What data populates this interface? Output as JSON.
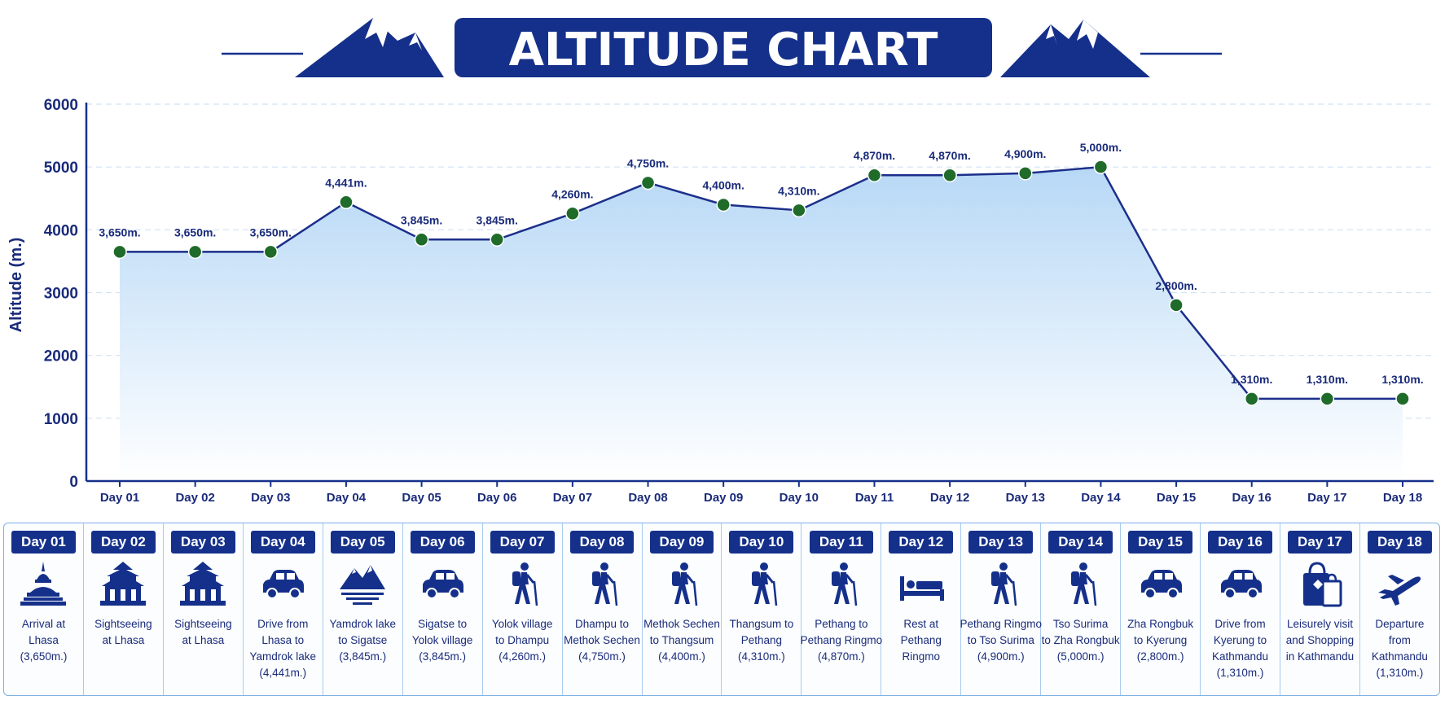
{
  "header": {
    "title": "ALTITUDE CHART"
  },
  "colors": {
    "navy": "#15308a",
    "line": "#1c2f8a",
    "point": "#1f6b2a",
    "fill_top": "#bcdcf7",
    "grid": "#cfe3f5"
  },
  "chart_data": {
    "type": "area",
    "title": "ALTITUDE CHART",
    "xlabel": "",
    "ylabel": "Altitude (m.)",
    "ylim": [
      0,
      6000
    ],
    "yticks": [
      "0",
      "1000",
      "2000",
      "3000",
      "4000",
      "5000",
      "6000"
    ],
    "ytick_values": [
      0,
      1000,
      2000,
      3000,
      4000,
      5000,
      6000
    ],
    "grid": true,
    "legend": "none",
    "categories": [
      "Day 01",
      "Day 02",
      "Day 03",
      "Day 04",
      "Day 05",
      "Day 06",
      "Day 07",
      "Day 08",
      "Day 09",
      "Day 10",
      "Day 11",
      "Day 12",
      "Day 13",
      "Day 14",
      "Day 15",
      "Day 16",
      "Day 17",
      "Day 18"
    ],
    "values": [
      3650,
      3650,
      3650,
      4441,
      3845,
      3845,
      4260,
      4750,
      4400,
      4310,
      4870,
      4870,
      4900,
      5000,
      2800,
      1310,
      1310,
      1310
    ],
    "data_labels": [
      "3,650m.",
      "3,650m.",
      "3,650m.",
      "4,441m.",
      "3,845m.",
      "3,845m.",
      "4,260m.",
      "4,750m.",
      "4,400m.",
      "4,310m.",
      "4,870m.",
      "4,870m.",
      "4,900m.",
      "5,000m.",
      "2,800m.",
      "1,310m.",
      "1,310m.",
      "1,310m."
    ]
  },
  "itinerary": [
    {
      "day": "Day 01",
      "icon": "stupa-icon",
      "lines": [
        "Arrival at",
        "Lhasa",
        "(3,650m.)"
      ]
    },
    {
      "day": "Day 02",
      "icon": "temple-icon",
      "lines": [
        "Sightseeing",
        "at Lhasa"
      ]
    },
    {
      "day": "Day 03",
      "icon": "temple-icon",
      "lines": [
        "Sightseeing",
        "at Lhasa"
      ]
    },
    {
      "day": "Day 04",
      "icon": "car-icon",
      "lines": [
        "Drive from",
        "Lhasa to",
        "Yamdrok lake",
        "(4,441m.)"
      ]
    },
    {
      "day": "Day 05",
      "icon": "mountain-lake-icon",
      "lines": [
        "Yamdrok lake",
        "to Sigatse",
        "(3,845m.)"
      ]
    },
    {
      "day": "Day 06",
      "icon": "car-icon",
      "lines": [
        "Sigatse to",
        "Yolok village",
        "(3,845m.)"
      ]
    },
    {
      "day": "Day 07",
      "icon": "hiker-icon",
      "lines": [
        "Yolok village",
        "to Dhampu",
        "(4,260m.)"
      ]
    },
    {
      "day": "Day 08",
      "icon": "hiker-icon",
      "lines": [
        "Dhampu to",
        "Methok Sechen",
        "(4,750m.)"
      ]
    },
    {
      "day": "Day 09",
      "icon": "hiker-icon",
      "lines": [
        "Methok Sechen",
        "to Thangsum",
        "(4,400m.)"
      ]
    },
    {
      "day": "Day 10",
      "icon": "hiker-icon",
      "lines": [
        "Thangsum to",
        "Pethang",
        "(4,310m.)"
      ]
    },
    {
      "day": "Day 11",
      "icon": "hiker-icon",
      "lines": [
        "Pethang to",
        "Pethang Ringmo",
        "(4,870m.)"
      ]
    },
    {
      "day": "Day 12",
      "icon": "bed-icon",
      "lines": [
        "Rest at",
        "Pethang",
        "Ringmo"
      ]
    },
    {
      "day": "Day 13",
      "icon": "hiker-icon",
      "lines": [
        "Pethang Ringmo",
        "to Tso Surima",
        "(4,900m.)"
      ]
    },
    {
      "day": "Day 14",
      "icon": "hiker-icon",
      "lines": [
        "Tso Surima",
        "to Zha Rongbuk",
        "(5,000m.)"
      ]
    },
    {
      "day": "Day 15",
      "icon": "car-icon",
      "lines": [
        "Zha Rongbuk",
        "to Kyerung",
        "(2,800m.)"
      ]
    },
    {
      "day": "Day 16",
      "icon": "car-icon",
      "lines": [
        "Drive from",
        "Kyerung to",
        "Kathmandu",
        "(1,310m.)"
      ]
    },
    {
      "day": "Day 17",
      "icon": "shopping-bag-icon",
      "lines": [
        "Leisurely visit",
        "and Shopping",
        "in Kathmandu"
      ]
    },
    {
      "day": "Day 18",
      "icon": "airplane-icon",
      "lines": [
        "Departure",
        "from",
        "Kathmandu",
        "(1,310m.)"
      ]
    }
  ]
}
